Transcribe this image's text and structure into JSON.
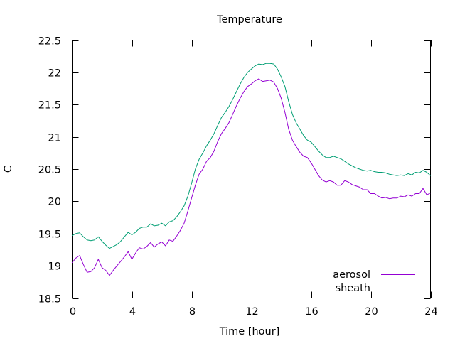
{
  "chart_data": {
    "type": "line",
    "title": "Temperature",
    "xlabel": "Time [hour]",
    "ylabel": "C",
    "xlim": [
      0,
      24
    ],
    "ylim": [
      18.5,
      22.5
    ],
    "x_ticks": [
      0,
      4,
      8,
      12,
      16,
      20,
      24
    ],
    "y_ticks": [
      18.5,
      19,
      19.5,
      20,
      20.5,
      21,
      21.5,
      22,
      22.5
    ],
    "grid": false,
    "legend_position": "bottom-right",
    "series": [
      {
        "name": "aerosol",
        "color": "#9400d3",
        "x": [
          0,
          0.25,
          0.5,
          0.75,
          1,
          1.25,
          1.5,
          1.75,
          2,
          2.25,
          2.5,
          2.75,
          3,
          3.25,
          3.5,
          3.75,
          4,
          4.25,
          4.5,
          4.75,
          5,
          5.25,
          5.5,
          5.75,
          6,
          6.25,
          6.5,
          6.75,
          7,
          7.25,
          7.5,
          7.75,
          8,
          8.25,
          8.5,
          8.75,
          9,
          9.25,
          9.5,
          9.75,
          10,
          10.25,
          10.5,
          10.75,
          11,
          11.25,
          11.5,
          11.75,
          12,
          12.25,
          12.5,
          12.75,
          13,
          13.25,
          13.5,
          13.75,
          14,
          14.25,
          14.5,
          14.75,
          15,
          15.25,
          15.5,
          15.75,
          16,
          16.25,
          16.5,
          16.75,
          17,
          17.25,
          17.5,
          17.75,
          18,
          18.25,
          18.5,
          18.75,
          19,
          19.25,
          19.5,
          19.75,
          20,
          20.25,
          20.5,
          20.75,
          21,
          21.25,
          21.5,
          21.75,
          22,
          22.25,
          22.5,
          22.75,
          23,
          23.25,
          23.5,
          23.75,
          24
        ],
        "y": [
          19.05,
          19.12,
          19.16,
          19.02,
          18.9,
          18.91,
          18.97,
          19.1,
          18.97,
          18.93,
          18.85,
          18.93,
          19.0,
          19.07,
          19.14,
          19.22,
          19.1,
          19.2,
          19.28,
          19.26,
          19.3,
          19.36,
          19.29,
          19.34,
          19.37,
          19.31,
          19.4,
          19.38,
          19.46,
          19.55,
          19.66,
          19.85,
          20.05,
          20.25,
          20.42,
          20.5,
          20.62,
          20.68,
          20.78,
          20.93,
          21.05,
          21.13,
          21.22,
          21.35,
          21.48,
          21.6,
          21.7,
          21.78,
          21.82,
          21.87,
          21.9,
          21.86,
          21.87,
          21.88,
          21.85,
          21.75,
          21.6,
          21.38,
          21.12,
          20.95,
          20.85,
          20.76,
          20.7,
          20.68,
          20.6,
          20.5,
          20.4,
          20.33,
          20.3,
          20.32,
          20.3,
          20.25,
          20.25,
          20.32,
          20.3,
          20.26,
          20.24,
          20.22,
          20.18,
          20.18,
          20.12,
          20.12,
          20.08,
          20.05,
          20.06,
          20.04,
          20.05,
          20.05,
          20.08,
          20.07,
          20.1,
          20.08,
          20.12,
          20.12,
          20.2,
          20.1,
          20.13
        ]
      },
      {
        "name": "sheath",
        "color": "#009e73",
        "x": [
          0,
          0.25,
          0.5,
          0.75,
          1,
          1.25,
          1.5,
          1.75,
          2,
          2.25,
          2.5,
          2.75,
          3,
          3.25,
          3.5,
          3.75,
          4,
          4.25,
          4.5,
          4.75,
          5,
          5.25,
          5.5,
          5.75,
          6,
          6.25,
          6.5,
          6.75,
          7,
          7.25,
          7.5,
          7.75,
          8,
          8.25,
          8.5,
          8.75,
          9,
          9.25,
          9.5,
          9.75,
          10,
          10.25,
          10.5,
          10.75,
          11,
          11.25,
          11.5,
          11.75,
          12,
          12.25,
          12.5,
          12.75,
          13,
          13.25,
          13.5,
          13.75,
          14,
          14.25,
          14.5,
          14.75,
          15,
          15.25,
          15.5,
          15.75,
          16,
          16.25,
          16.5,
          16.75,
          17,
          17.25,
          17.5,
          17.75,
          18,
          18.25,
          18.5,
          18.75,
          19,
          19.25,
          19.5,
          19.75,
          20,
          20.25,
          20.5,
          20.75,
          21,
          21.25,
          21.5,
          21.75,
          22,
          22.25,
          22.5,
          22.75,
          23,
          23.25,
          23.5,
          23.75,
          24
        ],
        "y": [
          19.47,
          19.5,
          19.51,
          19.45,
          19.4,
          19.39,
          19.4,
          19.45,
          19.38,
          19.32,
          19.27,
          19.3,
          19.33,
          19.38,
          19.45,
          19.52,
          19.48,
          19.52,
          19.58,
          19.6,
          19.6,
          19.65,
          19.62,
          19.63,
          19.66,
          19.62,
          19.68,
          19.7,
          19.76,
          19.84,
          19.93,
          20.08,
          20.28,
          20.5,
          20.65,
          20.75,
          20.86,
          20.95,
          21.05,
          21.18,
          21.3,
          21.38,
          21.47,
          21.58,
          21.7,
          21.82,
          21.92,
          22.0,
          22.05,
          22.1,
          22.13,
          22.12,
          22.14,
          22.14,
          22.13,
          22.05,
          21.93,
          21.78,
          21.55,
          21.35,
          21.22,
          21.12,
          21.02,
          20.95,
          20.92,
          20.85,
          20.78,
          20.72,
          20.68,
          20.68,
          20.7,
          20.68,
          20.66,
          20.62,
          20.58,
          20.55,
          20.52,
          20.5,
          20.48,
          20.47,
          20.48,
          20.46,
          20.45,
          20.45,
          20.44,
          20.42,
          20.41,
          20.4,
          20.41,
          20.4,
          20.43,
          20.41,
          20.45,
          20.44,
          20.48,
          20.45,
          20.4
        ]
      }
    ]
  }
}
